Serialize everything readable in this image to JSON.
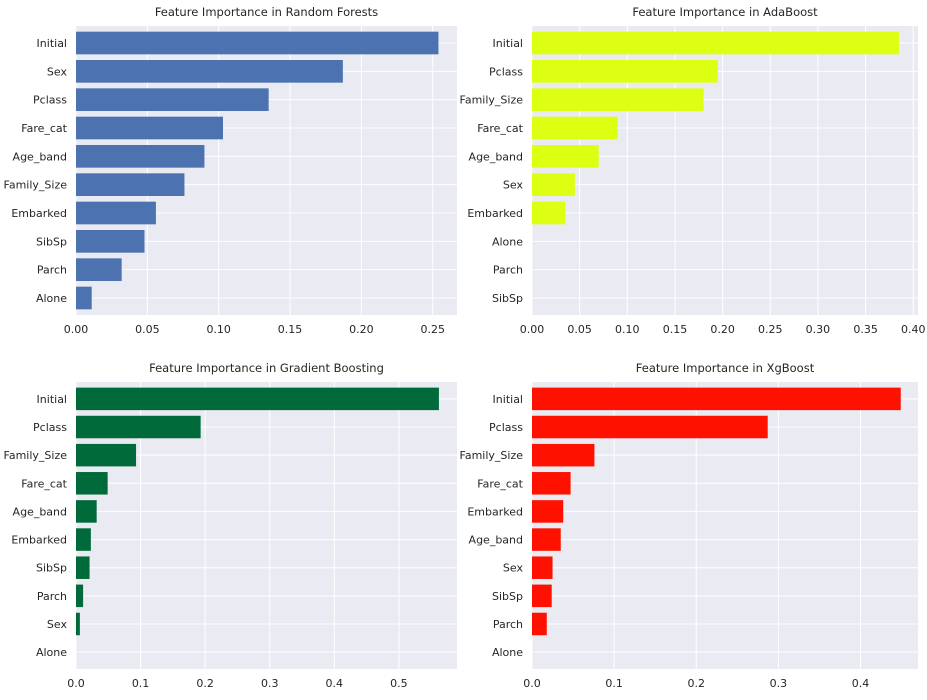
{
  "chart_data": [
    {
      "type": "bar",
      "orientation": "horizontal",
      "title": "Feature Importance in Random Forests",
      "color": "#4c72b0",
      "categories": [
        "Alone",
        "Parch",
        "SibSp",
        "Embarked",
        "Family_Size",
        "Age_band",
        "Fare_cat",
        "Pclass",
        "Sex",
        "Initial"
      ],
      "values": [
        0.011,
        0.032,
        0.048,
        0.056,
        0.076,
        0.09,
        0.103,
        0.135,
        0.187,
        0.254
      ],
      "xlim": [
        0,
        0.267
      ],
      "xticks": [
        0.0,
        0.05,
        0.1,
        0.15,
        0.2,
        0.25
      ],
      "xtick_labels": [
        "0.00",
        "0.05",
        "0.10",
        "0.15",
        "0.20",
        "0.25"
      ]
    },
    {
      "type": "bar",
      "orientation": "horizontal",
      "title": "Feature Importance in AdaBoost",
      "color": "#ddff11",
      "categories": [
        "SibSp",
        "Parch",
        "Alone",
        "Embarked",
        "Sex",
        "Age_band",
        "Fare_cat",
        "Family_Size",
        "Pclass",
        "Initial"
      ],
      "values": [
        0.0,
        0.0,
        0.0,
        0.035,
        0.045,
        0.07,
        0.09,
        0.18,
        0.195,
        0.385
      ],
      "xlim": [
        0,
        0.405
      ],
      "xticks": [
        0.0,
        0.05,
        0.1,
        0.15,
        0.2,
        0.25,
        0.3,
        0.35,
        0.4
      ],
      "xtick_labels": [
        "0.00",
        "0.05",
        "0.10",
        "0.15",
        "0.20",
        "0.25",
        "0.30",
        "0.35",
        "0.40"
      ]
    },
    {
      "type": "bar",
      "orientation": "horizontal",
      "title": "Feature Importance in Gradient Boosting",
      "color": "#006a3b",
      "categories": [
        "Alone",
        "Sex",
        "Parch",
        "SibSp",
        "Embarked",
        "Age_band",
        "Fare_cat",
        "Family_Size",
        "Pclass",
        "Initial"
      ],
      "values": [
        0.0,
        0.006,
        0.011,
        0.021,
        0.023,
        0.032,
        0.049,
        0.093,
        0.193,
        0.562
      ],
      "xlim": [
        0,
        0.59
      ],
      "xticks": [
        0.0,
        0.1,
        0.2,
        0.3,
        0.4,
        0.5
      ],
      "xtick_labels": [
        "0.0",
        "0.1",
        "0.2",
        "0.3",
        "0.4",
        "0.5"
      ]
    },
    {
      "type": "bar",
      "orientation": "horizontal",
      "title": "Feature Importance in XgBoost",
      "color": "#ff1100",
      "categories": [
        "Alone",
        "Parch",
        "SibSp",
        "Sex",
        "Age_band",
        "Embarked",
        "Fare_cat",
        "Family_Size",
        "Pclass",
        "Initial"
      ],
      "values": [
        0.0,
        0.018,
        0.024,
        0.025,
        0.035,
        0.038,
        0.047,
        0.076,
        0.287,
        0.449
      ],
      "xlim": [
        0,
        0.47
      ],
      "xticks": [
        0.0,
        0.1,
        0.2,
        0.3,
        0.4
      ],
      "xtick_labels": [
        "0.0",
        "0.1",
        "0.2",
        "0.3",
        "0.4"
      ]
    }
  ]
}
